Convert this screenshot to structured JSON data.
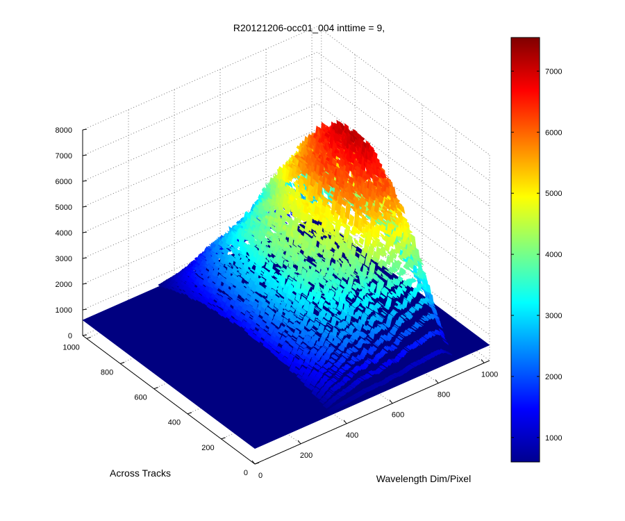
{
  "chart_data": {
    "type": "surface",
    "title": "R20121206-occ01_004 inttime = 9,",
    "xlabel": "Wavelength Dim/Pixel",
    "ylabel": "Across Tracks",
    "zlabel": "",
    "xlim": [
      0,
      1024
    ],
    "ylim": [
      0,
      1024
    ],
    "zlim": [
      0,
      8000
    ],
    "x_ticks": [
      "0",
      "200",
      "400",
      "600",
      "800",
      "1000"
    ],
    "y_ticks": [
      "0",
      "200",
      "400",
      "600",
      "800",
      "1000"
    ],
    "z_ticks": [
      "0",
      "1000",
      "2000",
      "3000",
      "4000",
      "5000",
      "6000",
      "7000",
      "8000"
    ],
    "colorbar": {
      "colormap": "jet",
      "range": [
        600,
        7550
      ],
      "ticks": [
        "1000",
        "2000",
        "3000",
        "4000",
        "5000",
        "6000",
        "7000"
      ]
    },
    "grid": true,
    "baseline_value": 600,
    "signal_band_pixels": [
      330,
      860
    ],
    "signal_spectrum": {
      "pixel": [
        330,
        360,
        380,
        420,
        460,
        490,
        520,
        540,
        560,
        590,
        620,
        640,
        660,
        680,
        700,
        720,
        750,
        780,
        800,
        830,
        860
      ],
      "max_value": [
        1500,
        2200,
        2600,
        3100,
        3800,
        4300,
        4200,
        4700,
        4200,
        5000,
        5300,
        5000,
        5500,
        6300,
        6600,
        6500,
        6900,
        7300,
        7500,
        7100,
        4000
      ]
    }
  }
}
